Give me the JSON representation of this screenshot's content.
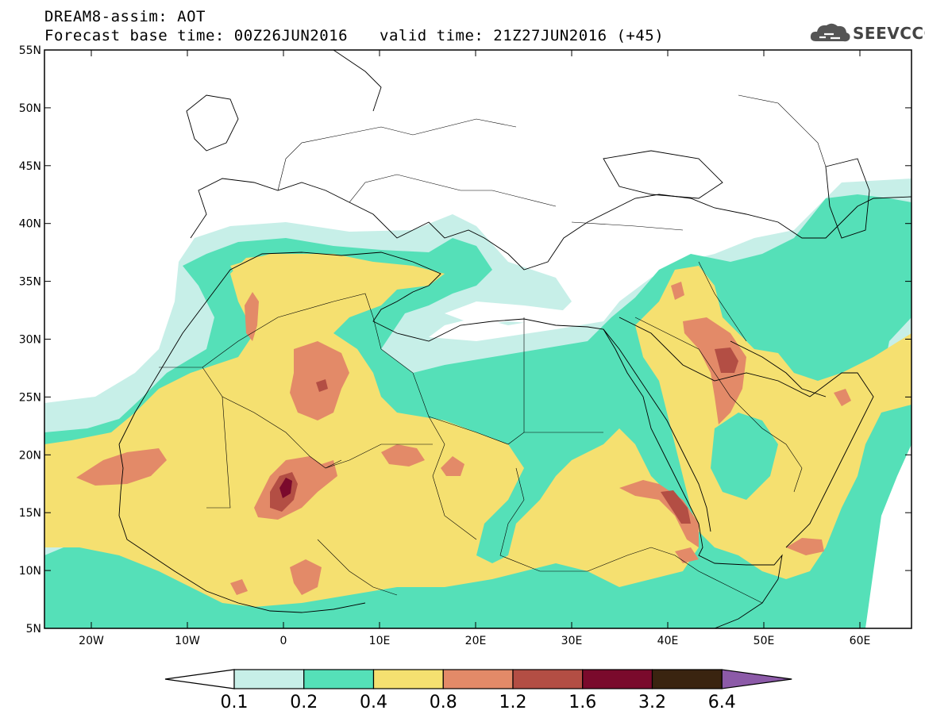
{
  "header": {
    "title_line1": "DREAM8-assim: AOT",
    "title_line2": "Forecast base time: 00Z26JUN2016",
    "valid_time": "valid time: 21Z27JUN2016 (+45)"
  },
  "logo": {
    "text": "SEEVCCC",
    "icon": "cloud-icon"
  },
  "map": {
    "lat_labels": [
      "55N",
      "50N",
      "45N",
      "40N",
      "35N",
      "30N",
      "25N",
      "20N",
      "15N",
      "10N",
      "5N"
    ],
    "lon_labels": [
      "20W",
      "10W",
      "0",
      "10E",
      "20E",
      "30E",
      "40E",
      "50E",
      "60E"
    ],
    "ocean_color": "#ffffff",
    "border_color": "#000000"
  },
  "colorbar": {
    "labels": [
      "0.1",
      "0.2",
      "0.4",
      "0.8",
      "1.2",
      "1.6",
      "3.2",
      "6.4"
    ],
    "colors": [
      "#ffffff",
      "#c7efe8",
      "#55e0b8",
      "#f5e070",
      "#e38a68",
      "#b34e44",
      "#7a0a2c",
      "#3a2410",
      "#8c5aa8"
    ]
  }
}
